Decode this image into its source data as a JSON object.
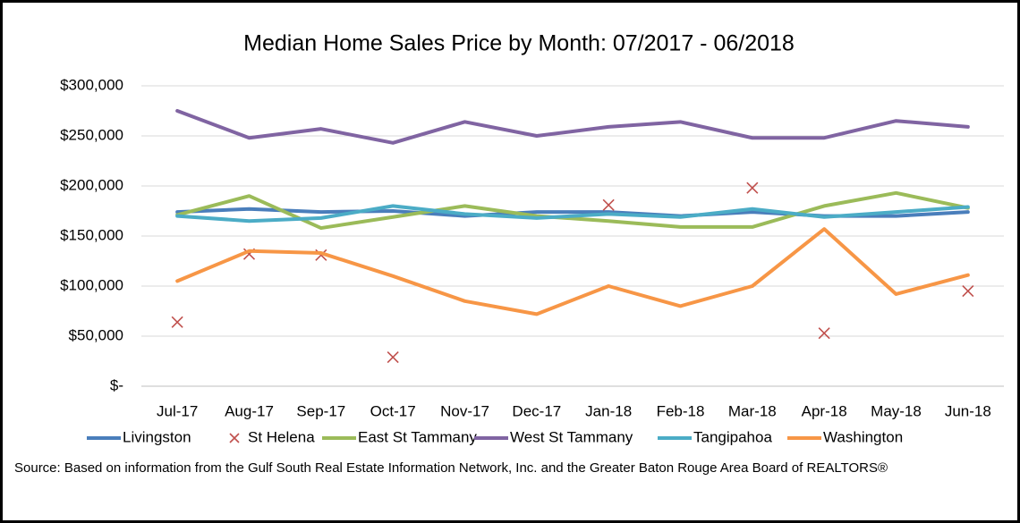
{
  "chart_data": {
    "type": "line",
    "title": "Median Home Sales Price by Month: 07/2017 - 06/2018",
    "categories": [
      "Jul-17",
      "Aug-17",
      "Sep-17",
      "Oct-17",
      "Nov-17",
      "Dec-17",
      "Jan-18",
      "Feb-18",
      "Mar-18",
      "Apr-18",
      "May-18",
      "Jun-18"
    ],
    "series": [
      {
        "name": "Livingston",
        "color": "#4a7ebb",
        "marker": "line",
        "values": [
          174000,
          177000,
          174000,
          175000,
          170000,
          174000,
          174000,
          170000,
          174000,
          170000,
          170000,
          174000
        ]
      },
      {
        "name": "St Helena",
        "color": "#c0504d",
        "marker": "x",
        "values": [
          64000,
          132000,
          131000,
          29000,
          null,
          null,
          181000,
          null,
          198000,
          53000,
          null,
          95000
        ]
      },
      {
        "name": "East St Tammany",
        "color": "#9bbb59",
        "marker": "line",
        "values": [
          171000,
          190000,
          158000,
          169000,
          180000,
          170000,
          165000,
          159000,
          159000,
          180000,
          193000,
          178000
        ]
      },
      {
        "name": "West St Tammany",
        "color": "#8064a2",
        "marker": "line",
        "values": [
          275000,
          248000,
          257000,
          243000,
          264000,
          250000,
          259000,
          264000,
          248000,
          248000,
          265000,
          259000
        ]
      },
      {
        "name": "Tangipahoa",
        "color": "#4bacc6",
        "marker": "line",
        "values": [
          170000,
          165000,
          168000,
          180000,
          172000,
          168000,
          172000,
          169000,
          177000,
          169000,
          174000,
          179000
        ]
      },
      {
        "name": "Washington",
        "color": "#f79646",
        "marker": "line",
        "values": [
          105000,
          135000,
          133000,
          110000,
          85000,
          72000,
          100000,
          80000,
          100000,
          157000,
          92000,
          111000
        ]
      }
    ],
    "ylim": [
      0,
      300000
    ],
    "yticks": [
      {
        "value": 0,
        "label": "$-"
      },
      {
        "value": 50000,
        "label": "$50,000"
      },
      {
        "value": 100000,
        "label": "$100,000"
      },
      {
        "value": 150000,
        "label": "$150,000"
      },
      {
        "value": 200000,
        "label": "$200,000"
      },
      {
        "value": 250000,
        "label": "$250,000"
      },
      {
        "value": 300000,
        "label": "$300,000"
      }
    ],
    "grid": true,
    "legend": "bottom",
    "source": "Source: Based on information from the Gulf South Real Estate Information Network, Inc. and the Greater Baton Rouge Area Board of REALTORS®"
  }
}
